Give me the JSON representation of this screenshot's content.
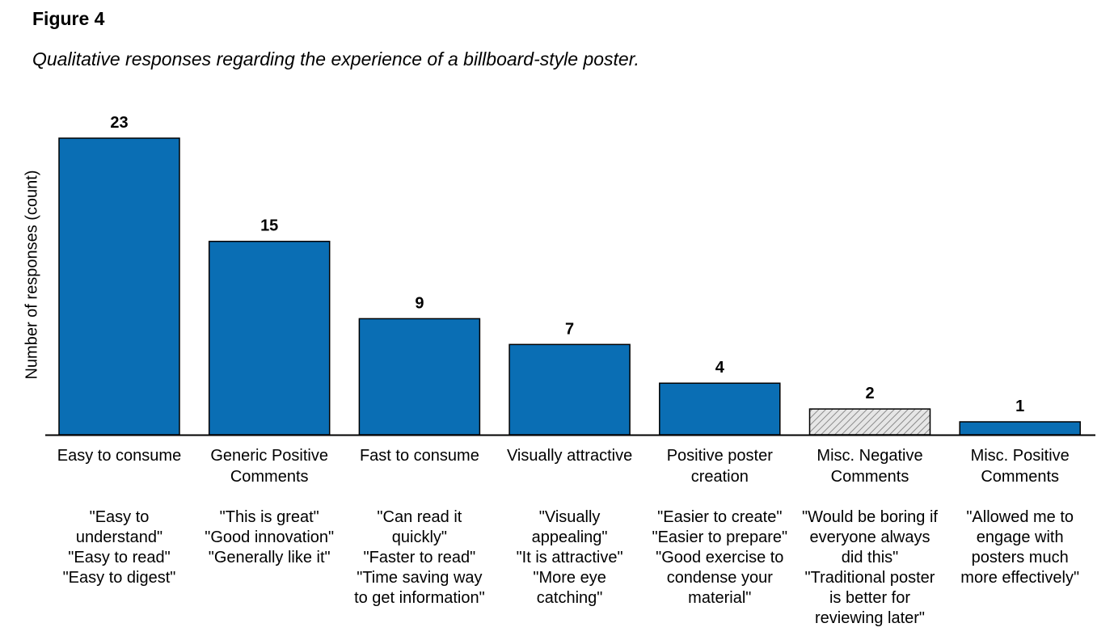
{
  "figure": {
    "label": "Figure 4",
    "caption": "Qualitative responses regarding the experience of a billboard-style poster."
  },
  "chart_data": {
    "type": "bar",
    "ylabel": "Number of responses (count)",
    "ylim": [
      0,
      23
    ],
    "grid": false,
    "categories": [
      [
        "Easy to consume"
      ],
      [
        "Generic Positive",
        "Comments"
      ],
      [
        "Fast to consume"
      ],
      [
        "Visually attractive"
      ],
      [
        "Positive poster",
        "creation"
      ],
      [
        "Misc. Negative",
        "Comments"
      ],
      [
        "Misc. Positive",
        "Comments"
      ]
    ],
    "values": [
      23,
      15,
      9,
      7,
      4,
      2,
      1
    ],
    "bar_styles": [
      "solid",
      "solid",
      "solid",
      "solid",
      "solid",
      "hatched",
      "solid"
    ],
    "colors": {
      "bar": "#0a6eb4",
      "hatch_fg": "#8a8a8a",
      "hatch_bg": "#e6e6e6",
      "edge": "#000000"
    },
    "annotations": [
      [
        "\"Easy to",
        "understand\"",
        "\"Easy to read\"",
        "\"Easy to digest\""
      ],
      [
        "\"This is great\"",
        "\"Good innovation\"",
        "\"Generally like it\""
      ],
      [
        "\"Can read it",
        "quickly\"",
        "\"Faster to read\"",
        "\"Time saving way",
        "to get information\""
      ],
      [
        "\"Visually",
        "appealing\"",
        "\"It is attractive\"",
        "\"More eye",
        "catching\""
      ],
      [
        "\"Easier to create\"",
        "\"Easier to prepare\"",
        "\"Good exercise to",
        "condense your",
        "material\""
      ],
      [
        "\"Would be boring if",
        "everyone always",
        "did this\"",
        "\"Traditional poster",
        "is better for",
        "reviewing later\""
      ],
      [
        "\"Allowed me to",
        "engage with",
        "posters much",
        "more effectively\""
      ]
    ]
  }
}
